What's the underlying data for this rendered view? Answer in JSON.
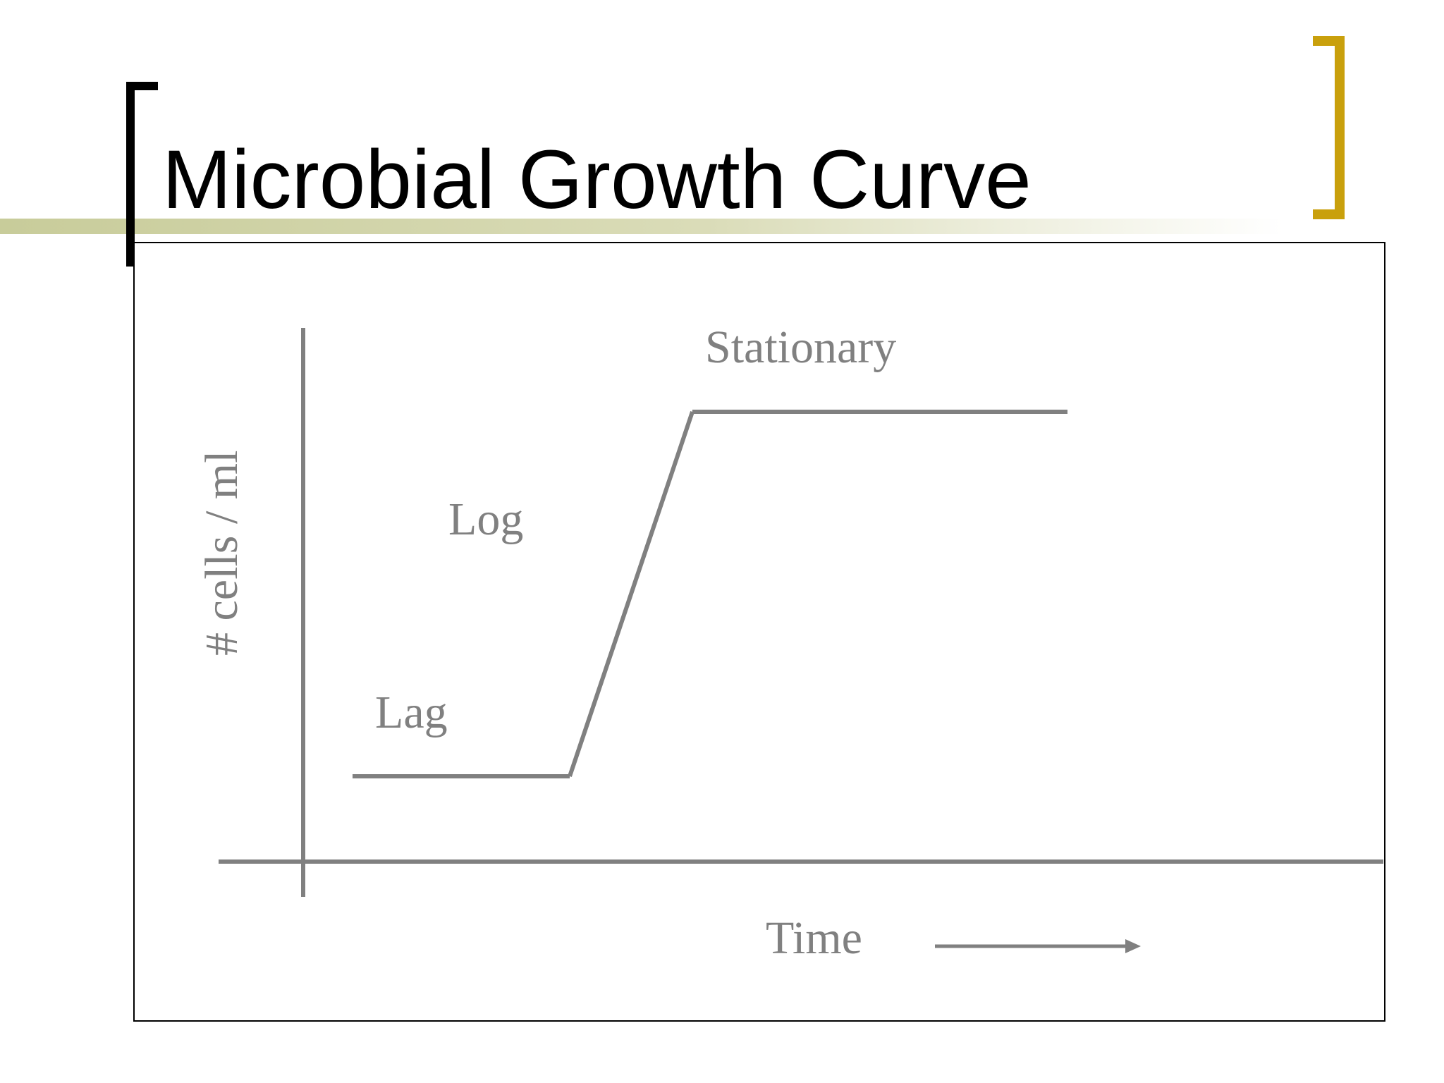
{
  "slide": {
    "title": "Microbial Growth Curve"
  },
  "diagram": {
    "y_axis_label": "# cells / ml",
    "x_axis_label": "Time",
    "phases": [
      {
        "label": "Lag"
      },
      {
        "label": "Log"
      },
      {
        "label": "Stationary"
      }
    ]
  },
  "colors": {
    "title_text": "#000000",
    "accent_bracket_right": "#C9A00C",
    "bracket_left": "#000000",
    "underline_bar": "#C8CC9A",
    "diagram_lines": "#808080",
    "diagram_text": "#808080",
    "frame": "#000000"
  }
}
